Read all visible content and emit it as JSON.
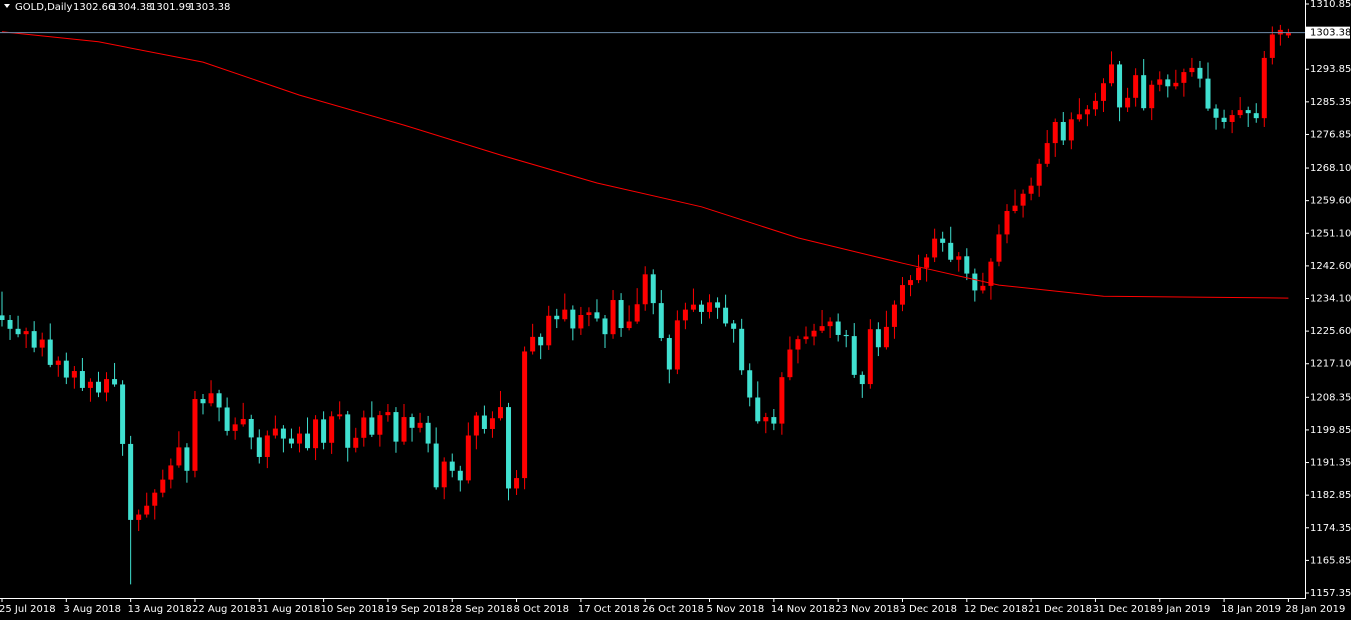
{
  "chart_data": {
    "type": "candlestick",
    "symbol": "GOLD,Daily",
    "bull_color": "#ff0000",
    "bear_color": "#40e0d0",
    "background": "#000000",
    "categories": [
      "25 Jul 2018",
      null,
      null,
      null,
      null,
      null,
      null,
      null,
      "3 Aug 2018",
      null,
      null,
      null,
      null,
      null,
      null,
      null,
      "13 Aug 2018",
      null,
      null,
      null,
      null,
      null,
      null,
      null,
      "22 Aug 2018",
      null,
      null,
      null,
      null,
      null,
      null,
      null,
      "31 Aug 2018",
      null,
      null,
      null,
      null,
      null,
      null,
      null,
      "10 Sep 2018",
      null,
      null,
      null,
      null,
      null,
      null,
      null,
      "19 Sep 2018",
      null,
      null,
      null,
      null,
      null,
      null,
      null,
      "28 Sep 2018",
      null,
      null,
      null,
      null,
      null,
      null,
      null,
      "8 Oct 2018",
      null,
      null,
      null,
      null,
      null,
      null,
      null,
      "17 Oct 2018",
      null,
      null,
      null,
      null,
      null,
      null,
      null,
      "26 Oct 2018",
      null,
      null,
      null,
      null,
      null,
      null,
      null,
      "5 Nov 2018",
      null,
      null,
      null,
      null,
      null,
      null,
      null,
      "14 Nov 2018",
      null,
      null,
      null,
      null,
      null,
      null,
      null,
      "23 Nov 2018",
      null,
      null,
      null,
      null,
      null,
      null,
      null,
      "3 Dec 2018",
      null,
      null,
      null,
      null,
      null,
      null,
      null,
      "12 Dec 2018",
      null,
      null,
      null,
      null,
      null,
      null,
      null,
      "21 Dec 2018",
      null,
      null,
      null,
      null,
      null,
      null,
      null,
      "31 Dec 2018",
      null,
      null,
      null,
      null,
      null,
      null,
      null,
      "9 Jan 2019",
      null,
      null,
      null,
      null,
      null,
      null,
      null,
      "18 Jan 2019",
      null,
      null,
      null,
      null,
      null,
      null,
      null,
      "28 Jan 2019"
    ],
    "open": [
      1229.7,
      1228.5,
      1226.2,
      1224.8,
      1225.6,
      1221.3,
      1223.4,
      1216.8,
      1217.9,
      1213.5,
      1215.2,
      1210.8,
      1212.4,
      1209.6,
      1213.1,
      1211.7,
      1196.2,
      1176.4,
      1177.8,
      1180.1,
      1183.5,
      1186.9,
      1190.6,
      1195.3,
      1189.2,
      1207.9,
      1206.8,
      1209.4,
      1205.7,
      1199.6,
      1201.3,
      1202.7,
      1197.9,
      1192.8,
      1198.4,
      1200.2,
      1197.6,
      1196.3,
      1198.9,
      1195.1,
      1202.6,
      1196.5,
      1203.4,
      1203.9,
      1195.2,
      1197.8,
      1203.1,
      1198.6,
      1203.7,
      1204.5,
      1196.8,
      1203.2,
      1200.4,
      1201.7,
      1196.3,
      1184.9,
      1191.6,
      1189.2,
      1186.7,
      1198.4,
      1203.6,
      1200.1,
      1202.9,
      1205.8,
      1184.6,
      1187.3,
      1220.3,
      1224.1,
      1221.9,
      1229.6,
      1228.7,
      1231.2,
      1226.3,
      1229.8,
      1230.5,
      1228.9,
      1224.8,
      1233.7,
      1226.4,
      1228.1,
      1232.6,
      1240.4,
      1232.9,
      1223.8,
      1215.6,
      1228.4,
      1231.2,
      1232.5,
      1230.6,
      1233.1,
      1231.7,
      1227.6,
      1226.2,
      1215.4,
      1208.3,
      1202.1,
      1203.2,
      1201.5,
      1213.6,
      1220.8,
      1223.5,
      1224.2,
      1225.7,
      1226.9,
      1228.1,
      1224.6,
      1224.3,
      1214.2,
      1211.8,
      1226.1,
      1221.4,
      1226.7,
      1232.5,
      1237.6,
      1238.9,
      1242.1,
      1244.8,
      1249.7,
      1248.6,
      1244.2,
      1245.1,
      1240.6,
      1236.2,
      1237.4,
      1243.7,
      1250.8,
      1256.9,
      1258.3,
      1261.4,
      1263.5,
      1269.2,
      1274.6,
      1280.1,
      1275.3,
      1280.8,
      1282.1,
      1283.4,
      1285.6,
      1290.2,
      1295.1,
      1283.9,
      1286.4,
      1292.3,
      1283.7,
      1289.8,
      1291.2,
      1289.4,
      1290.3,
      1293.1,
      1294.2,
      1291.4,
      1283.6,
      1281.2,
      1280.1,
      1281.9,
      1283.2,
      1282.4,
      1281.1,
      1296.8,
      1302.9,
      1302.66
    ],
    "high": [
      1235.9,
      1229.8,
      1229.6,
      1226.5,
      1228.2,
      1225.2,
      1227.6,
      1219.0,
      1220.0,
      1216.5,
      1218.6,
      1213.3,
      1215.0,
      1214.9,
      1217.3,
      1212.8,
      1198.3,
      1179.1,
      1183.5,
      1184.4,
      1189.5,
      1192.4,
      1199.5,
      1196.4,
      1210.0,
      1209.2,
      1212.8,
      1210.3,
      1208.3,
      1203.1,
      1206.9,
      1203.8,
      1200.0,
      1199.7,
      1203.6,
      1201.1,
      1200.2,
      1200.7,
      1203.1,
      1203.7,
      1204.7,
      1204.7,
      1207.3,
      1204.8,
      1200.4,
      1204.9,
      1207.3,
      1204.8,
      1206.6,
      1205.8,
      1206.6,
      1204.1,
      1204.3,
      1203.5,
      1200.5,
      1192.7,
      1193.7,
      1190.5,
      1201.8,
      1204.5,
      1206.2,
      1204.7,
      1210.0,
      1206.9,
      1189.4,
      1221.6,
      1227.5,
      1225.0,
      1232.2,
      1231.4,
      1235.4,
      1232.3,
      1231.9,
      1231.8,
      1233.9,
      1229.8,
      1236.3,
      1235.5,
      1232.3,
      1236.8,
      1242.5,
      1241.7,
      1236.3,
      1224.7,
      1231.0,
      1233.0,
      1236.7,
      1233.6,
      1235.2,
      1234.4,
      1235.1,
      1228.5,
      1228.8,
      1217.2,
      1212.5,
      1204.3,
      1205.3,
      1214.9,
      1224.2,
      1224.4,
      1226.8,
      1227.5,
      1231.1,
      1229.2,
      1230.2,
      1225.9,
      1227.7,
      1215.1,
      1228.7,
      1227.9,
      1230.9,
      1233.6,
      1239.7,
      1240.2,
      1245.5,
      1245.7,
      1252.3,
      1251.5,
      1252.8,
      1246.2,
      1247.2,
      1241.9,
      1240.8,
      1244.6,
      1253.4,
      1258.7,
      1262.5,
      1262.5,
      1265.6,
      1270.5,
      1278.0,
      1281.0,
      1282.7,
      1282.6,
      1286.3,
      1284.5,
      1287.7,
      1291.5,
      1298.5,
      1296.0,
      1289.0,
      1294.1,
      1296.5,
      1290.9,
      1293.3,
      1292.5,
      1293.7,
      1294.0,
      1296.8,
      1296.0,
      1295.6,
      1284.7,
      1283.3,
      1283.2,
      1286.6,
      1284.1,
      1285.0,
      1298.6,
      1305.0,
      1305.4,
      1304.38
    ],
    "low": [
      1226.8,
      1223.3,
      1224.0,
      1221.2,
      1220.1,
      1219.0,
      1216.2,
      1213.7,
      1211.8,
      1210.6,
      1210.0,
      1207.2,
      1208.4,
      1207.3,
      1211.1,
      1193.1,
      1159.6,
      1173.5,
      1177.0,
      1176.5,
      1182.3,
      1184.6,
      1190.0,
      1186.1,
      1187.5,
      1203.9,
      1206.0,
      1202.1,
      1198.4,
      1197.3,
      1200.7,
      1194.8,
      1191.1,
      1189.9,
      1197.6,
      1194.0,
      1195.1,
      1194.0,
      1194.5,
      1192.0,
      1194.8,
      1193.6,
      1202.6,
      1191.6,
      1194.0,
      1195.5,
      1198.0,
      1195.5,
      1202.0,
      1193.9,
      1196.0,
      1196.8,
      1199.2,
      1194.0,
      1184.3,
      1181.8,
      1187.5,
      1183.8,
      1185.9,
      1194.8,
      1198.9,
      1197.8,
      1202.3,
      1181.5,
      1182.9,
      1184.4,
      1219.5,
      1218.3,
      1220.7,
      1226.4,
      1228.1,
      1223.2,
      1224.6,
      1226.9,
      1228.1,
      1221.2,
      1223.6,
      1224.1,
      1225.8,
      1227.5,
      1230.9,
      1230.0,
      1223.0,
      1212.0,
      1214.4,
      1226.1,
      1230.6,
      1227.5,
      1228.9,
      1228.8,
      1226.8,
      1222.6,
      1214.2,
      1206.0,
      1201.5,
      1199.0,
      1199.8,
      1198.6,
      1212.8,
      1217.2,
      1222.3,
      1221.9,
      1225.1,
      1223.8,
      1222.9,
      1221.4,
      1213.4,
      1208.2,
      1210.6,
      1219.1,
      1220.8,
      1223.6,
      1230.8,
      1234.7,
      1238.1,
      1238.5,
      1243.6,
      1246.3,
      1243.6,
      1241.1,
      1238.9,
      1233.3,
      1235.4,
      1233.8,
      1242.5,
      1248.5,
      1256.3,
      1255.2,
      1259.7,
      1260.6,
      1268.4,
      1271.0,
      1274.1,
      1273.0,
      1280.2,
      1279.0,
      1281.7,
      1282.7,
      1289.4,
      1280.3,
      1282.7,
      1284.1,
      1283.1,
      1280.6,
      1288.1,
      1286.5,
      1288.6,
      1286.7,
      1291.9,
      1289.1,
      1283.0,
      1278.1,
      1278.4,
      1277.2,
      1281.1,
      1278.8,
      1279.9,
      1278.8,
      1295.1,
      1300.0,
      1301.99
    ],
    "close": [
      1228.5,
      1226.2,
      1224.8,
      1225.6,
      1221.3,
      1223.4,
      1216.8,
      1217.9,
      1213.5,
      1215.2,
      1210.8,
      1212.4,
      1209.6,
      1213.1,
      1211.7,
      1196.2,
      1176.4,
      1177.8,
      1180.1,
      1183.5,
      1186.9,
      1190.6,
      1195.3,
      1189.2,
      1207.9,
      1206.8,
      1209.4,
      1205.7,
      1199.6,
      1201.3,
      1202.7,
      1197.9,
      1192.8,
      1198.4,
      1200.2,
      1197.6,
      1196.3,
      1198.9,
      1195.1,
      1202.6,
      1196.5,
      1203.4,
      1203.9,
      1195.2,
      1197.8,
      1203.1,
      1198.6,
      1203.7,
      1204.5,
      1196.8,
      1203.2,
      1200.4,
      1201.7,
      1196.3,
      1184.9,
      1191.6,
      1189.2,
      1186.7,
      1198.4,
      1203.6,
      1200.1,
      1202.9,
      1205.8,
      1184.6,
      1187.3,
      1220.3,
      1224.1,
      1221.9,
      1229.6,
      1228.7,
      1231.2,
      1226.3,
      1229.8,
      1230.5,
      1228.9,
      1224.8,
      1233.7,
      1226.4,
      1228.1,
      1232.6,
      1240.4,
      1232.9,
      1223.8,
      1215.6,
      1228.4,
      1231.2,
      1232.5,
      1230.6,
      1233.1,
      1231.7,
      1227.6,
      1226.2,
      1215.4,
      1208.3,
      1202.1,
      1203.2,
      1201.5,
      1213.6,
      1220.8,
      1223.5,
      1224.2,
      1225.7,
      1226.9,
      1228.1,
      1224.6,
      1224.3,
      1214.2,
      1211.8,
      1226.1,
      1221.4,
      1226.7,
      1232.5,
      1237.6,
      1238.9,
      1242.1,
      1244.8,
      1249.7,
      1248.6,
      1244.2,
      1245.1,
      1240.6,
      1236.2,
      1237.4,
      1243.7,
      1250.8,
      1256.9,
      1258.3,
      1261.4,
      1263.5,
      1269.2,
      1274.6,
      1280.1,
      1275.3,
      1280.8,
      1282.1,
      1283.4,
      1285.6,
      1290.2,
      1295.1,
      1283.9,
      1286.4,
      1292.3,
      1283.7,
      1289.8,
      1291.2,
      1289.4,
      1290.3,
      1293.1,
      1294.2,
      1291.4,
      1283.6,
      1281.2,
      1280.1,
      1281.9,
      1283.2,
      1282.4,
      1281.1,
      1296.8,
      1302.9,
      1304.1,
      1303.38
    ],
    "ma": {
      "color": "#ff0000",
      "x": [
        0,
        12,
        25,
        37,
        50,
        62,
        74,
        87,
        99,
        112,
        124,
        137,
        160
      ],
      "values": [
        1303.6,
        1301.0,
        1295.7,
        1287.1,
        1279.3,
        1271.5,
        1264.2,
        1258.0,
        1249.9,
        1243.3,
        1237.6,
        1234.7,
        1234.2
      ]
    },
    "ylim": [
      1156.05,
      1311.89
    ],
    "yticks": [
      1310.85,
      1293.85,
      1285.35,
      1276.85,
      {
        "value": 1268.1,
        "label": "1268.10"
      },
      {
        "value": 1259.6,
        "label": "1259.60"
      },
      {
        "value": 1251.1,
        "label": "1251.10"
      },
      {
        "value": 1242.6,
        "label": "1242.60"
      },
      {
        "value": 1234.1,
        "label": "1234.10"
      },
      {
        "value": 1225.6,
        "label": "1225.60"
      },
      {
        "value": 1217.1,
        "label": "1217.10"
      },
      1208.35,
      1199.85,
      1191.35,
      1182.85,
      1174.35,
      1165.85,
      1157.35
    ]
  }
}
